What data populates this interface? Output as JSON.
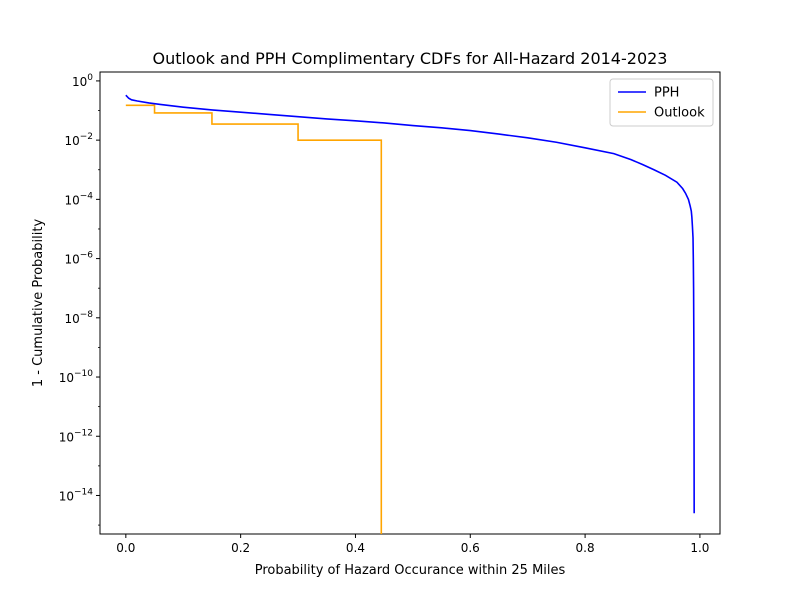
{
  "chart_data": {
    "type": "line",
    "title": "Outlook and PPH Complimentary CDFs for All-Hazard 2014-2023",
    "xlabel": "Probability of Hazard Occurance within 25 Miles",
    "ylabel": "1 - Cumulative Probability",
    "yscale": "log",
    "xlim": [
      -0.045,
      1.035
    ],
    "ylim": [
      5e-16,
      2
    ],
    "x_ticks": [
      {
        "value": 0.0,
        "label": "0.0"
      },
      {
        "value": 0.2,
        "label": "0.2"
      },
      {
        "value": 0.4,
        "label": "0.4"
      },
      {
        "value": 0.6,
        "label": "0.6"
      },
      {
        "value": 0.8,
        "label": "0.8"
      },
      {
        "value": 1.0,
        "label": "1.0"
      }
    ],
    "y_ticks": [
      {
        "value": 1.0,
        "base": "10",
        "exp": "0"
      },
      {
        "value": 0.01,
        "base": "10",
        "exp": "−2"
      },
      {
        "value": 0.0001,
        "base": "10",
        "exp": "−4"
      },
      {
        "value": 1e-06,
        "base": "10",
        "exp": "−6"
      },
      {
        "value": 1e-08,
        "base": "10",
        "exp": "−8"
      },
      {
        "value": 1e-10,
        "base": "10",
        "exp": "−10"
      },
      {
        "value": 1e-12,
        "base": "10",
        "exp": "−12"
      },
      {
        "value": 1e-14,
        "base": "10",
        "exp": "−14"
      }
    ],
    "grid": false,
    "legend_position": "top-right",
    "series": [
      {
        "name": "PPH",
        "color": "#0000ff",
        "step": false,
        "points": [
          [
            0.0,
            0.33
          ],
          [
            0.005,
            0.26
          ],
          [
            0.01,
            0.23
          ],
          [
            0.02,
            0.21
          ],
          [
            0.04,
            0.18
          ],
          [
            0.06,
            0.16
          ],
          [
            0.1,
            0.13
          ],
          [
            0.15,
            0.105
          ],
          [
            0.2,
            0.088
          ],
          [
            0.25,
            0.074
          ],
          [
            0.3,
            0.062
          ],
          [
            0.35,
            0.052
          ],
          [
            0.4,
            0.045
          ],
          [
            0.45,
            0.038
          ],
          [
            0.5,
            0.031
          ],
          [
            0.55,
            0.026
          ],
          [
            0.6,
            0.021
          ],
          [
            0.65,
            0.016
          ],
          [
            0.7,
            0.012
          ],
          [
            0.75,
            0.0085
          ],
          [
            0.8,
            0.0055
          ],
          [
            0.85,
            0.0035
          ],
          [
            0.88,
            0.0022
          ],
          [
            0.9,
            0.0015
          ],
          [
            0.92,
            0.001
          ],
          [
            0.94,
            0.00065
          ],
          [
            0.96,
            0.00038
          ],
          [
            0.97,
            0.00023
          ],
          [
            0.975,
            0.00016
          ],
          [
            0.98,
            0.0001
          ],
          [
            0.983,
            6e-05
          ],
          [
            0.985,
            4e-05
          ],
          [
            0.986,
            2.5e-05
          ],
          [
            0.987,
            1.2e-05
          ],
          [
            0.988,
            5e-06
          ],
          [
            0.9885,
            1e-06
          ],
          [
            0.989,
            1e-07
          ],
          [
            0.9895,
            1e-09
          ],
          [
            0.9898,
            1e-12
          ],
          [
            0.99,
            2.5e-15
          ]
        ]
      },
      {
        "name": "Outlook",
        "color": "#ffa500",
        "step": true,
        "points": [
          [
            0.0,
            0.15
          ],
          [
            0.05,
            0.15
          ],
          [
            0.05,
            0.083
          ],
          [
            0.15,
            0.083
          ],
          [
            0.15,
            0.035
          ],
          [
            0.3,
            0.035
          ],
          [
            0.3,
            0.01
          ],
          [
            0.445,
            0.01
          ],
          [
            0.445,
            5e-16
          ]
        ]
      }
    ]
  }
}
